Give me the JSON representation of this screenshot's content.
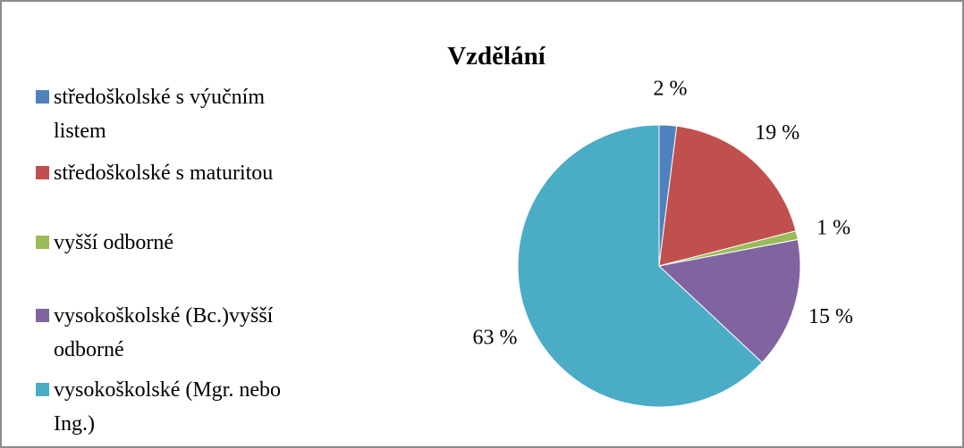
{
  "chart_data": {
    "type": "pie",
    "title": "Vzdělání",
    "categories": [
      "středoškolské s výučním listem",
      "středoškolské s maturitou",
      "vyšší odborné",
      "vysokoškolské (Bc.)vyšší odborné",
      "vysokoškolské (Mgr. nebo Ing.)"
    ],
    "values": [
      2,
      19,
      1,
      15,
      63
    ],
    "value_labels": [
      "2 %",
      "19 %",
      "1 %",
      "15 %",
      "63 %"
    ],
    "colors": [
      "#4f81bd",
      "#c0504d",
      "#9bbb59",
      "#8064a2",
      "#4bacc6"
    ],
    "legend": "left"
  }
}
